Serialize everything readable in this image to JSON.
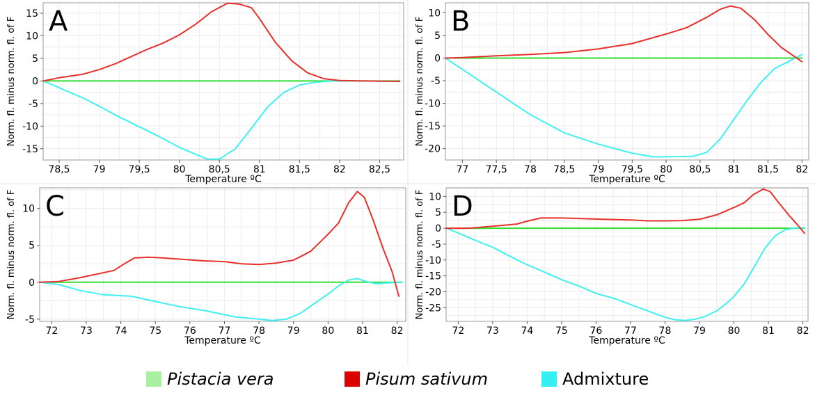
{
  "colors": {
    "pistacia": "#33dd33",
    "pisum": "#e8302a",
    "admixture": "#3ff0f0",
    "grid": "#ececec",
    "frame": "#9a9a9a"
  },
  "legend": [
    {
      "label": "Pistacia vera",
      "swatch": "#a8f0a0",
      "italic": true
    },
    {
      "label": "Pisum sativum",
      "swatch": "#dd0000",
      "italic": true
    },
    {
      "label": "Admixture",
      "swatch": "#33f0f5",
      "italic": false
    }
  ],
  "chart_data": [
    {
      "type": "line",
      "panel_label": "A",
      "xlabel": "Temperature ºC",
      "ylabel": "Norm. fl. minus norm. fl. of F",
      "xlim": [
        78.3,
        82.8
      ],
      "ylim": [
        -17.5,
        17.3
      ],
      "xticks": [
        78.5,
        79,
        79.5,
        80,
        80.5,
        81,
        81.5,
        82,
        82.5
      ],
      "xtick_labels": [
        "78,5",
        "79",
        "79,5",
        "80",
        "80,5",
        "81",
        "81,5",
        "82",
        "82,5"
      ],
      "yticks": [
        -15,
        -10,
        -5,
        0,
        5,
        10,
        15
      ],
      "ytick_labels": [
        "-15",
        "-10",
        "-5",
        "0",
        "5",
        "10",
        "15"
      ],
      "series": [
        {
          "name": "Pistacia vera",
          "x": [
            78.3,
            82.75
          ],
          "y": [
            0,
            0
          ]
        },
        {
          "name": "Pisum sativum",
          "x": [
            78.3,
            78.5,
            78.8,
            79.0,
            79.2,
            79.4,
            79.6,
            79.8,
            80.0,
            80.2,
            80.4,
            80.6,
            80.75,
            80.9,
            81.0,
            81.2,
            81.4,
            81.6,
            81.8,
            82.0,
            82.3,
            82.75
          ],
          "y": [
            0,
            0.7,
            1.5,
            2.5,
            3.8,
            5.4,
            7.0,
            8.4,
            10.2,
            12.5,
            15.3,
            17.2,
            17.0,
            16.2,
            13.8,
            8.5,
            4.5,
            1.8,
            0.5,
            0.1,
            0,
            -0.1
          ]
        },
        {
          "name": "Admixture",
          "x": [
            78.3,
            78.5,
            78.8,
            79.0,
            79.2,
            79.4,
            79.6,
            79.8,
            80.0,
            80.2,
            80.35,
            80.5,
            80.7,
            80.9,
            81.1,
            81.3,
            81.5,
            81.7,
            81.9,
            82.1,
            82.3,
            82.75
          ],
          "y": [
            0,
            -1.5,
            -3.8,
            -5.6,
            -7.5,
            -9.3,
            -11.0,
            -12.8,
            -14.7,
            -16.2,
            -17.3,
            -17.3,
            -15.0,
            -10.5,
            -5.8,
            -2.6,
            -0.9,
            -0.3,
            0,
            0,
            0,
            -0.1
          ]
        }
      ]
    },
    {
      "type": "line",
      "panel_label": "B",
      "xlabel": "Temperature ºC",
      "ylabel": "Norm. fl. minus norm. fl. of F",
      "xlim": [
        76.75,
        82.1
      ],
      "ylim": [
        -22.5,
        12.2
      ],
      "xticks": [
        77,
        77.5,
        78,
        78.5,
        79,
        79.5,
        80,
        80.5,
        81,
        81.5,
        82
      ],
      "xtick_labels": [
        "77",
        "77,5",
        "78",
        "78,5",
        "79",
        "79,5",
        "80",
        "80,5",
        "81",
        "81,5",
        "82"
      ],
      "yticks": [
        -20,
        -15,
        -10,
        -5,
        0,
        5,
        10
      ],
      "ytick_labels": [
        "-20",
        "-15",
        "-10",
        "-5",
        "0",
        "5",
        "10"
      ],
      "series": [
        {
          "name": "Pistacia vera",
          "x": [
            76.75,
            82.0
          ],
          "y": [
            0,
            0
          ]
        },
        {
          "name": "Pisum sativum",
          "x": [
            76.75,
            77.0,
            77.5,
            78.0,
            78.5,
            79.0,
            79.5,
            80.0,
            80.3,
            80.6,
            80.8,
            80.95,
            81.1,
            81.3,
            81.5,
            81.7,
            82.0
          ],
          "y": [
            0,
            0.1,
            0.5,
            0.8,
            1.2,
            2.0,
            3.2,
            5.3,
            6.7,
            9.0,
            10.8,
            11.5,
            11.0,
            8.5,
            5.2,
            2.3,
            -0.8
          ]
        },
        {
          "name": "Admixture",
          "x": [
            76.75,
            77.0,
            77.5,
            78.0,
            78.5,
            79.0,
            79.5,
            79.8,
            80.0,
            80.4,
            80.6,
            80.8,
            81.0,
            81.2,
            81.4,
            81.6,
            81.8,
            82.0
          ],
          "y": [
            0,
            -2.5,
            -7.5,
            -12.5,
            -16.5,
            -19.0,
            -21.0,
            -21.8,
            -21.8,
            -21.7,
            -20.8,
            -17.8,
            -13.5,
            -9.2,
            -5.3,
            -2.3,
            -0.8,
            0.8
          ]
        }
      ]
    },
    {
      "type": "line",
      "panel_label": "C",
      "xlabel": "Temperature ºC",
      "ylabel": "Norm. fl. minus norm. fl. of F",
      "xlim": [
        71.65,
        82.25
      ],
      "ylim": [
        -5.3,
        12.8
      ],
      "xticks": [
        72,
        73,
        74,
        75,
        76,
        77,
        78,
        79,
        80,
        81,
        82
      ],
      "xtick_labels": [
        "72",
        "73",
        "74",
        "75",
        "76",
        "77",
        "78",
        "79",
        "80",
        "81",
        "82"
      ],
      "yticks": [
        -5,
        0,
        5,
        10
      ],
      "ytick_labels": [
        "-5",
        "0",
        "5",
        "10"
      ],
      "series": [
        {
          "name": "Pistacia vera",
          "x": [
            71.65,
            82.15
          ],
          "y": [
            0,
            0
          ]
        },
        {
          "name": "Pisum sativum",
          "x": [
            71.65,
            72.2,
            72.8,
            73.3,
            73.8,
            74.1,
            74.4,
            74.8,
            75.2,
            75.8,
            76.4,
            77.0,
            77.5,
            78.0,
            78.5,
            79.0,
            79.5,
            80.0,
            80.3,
            80.6,
            80.85,
            81.05,
            81.3,
            81.6,
            81.85,
            82.05
          ],
          "y": [
            0,
            0.1,
            0.6,
            1.1,
            1.6,
            2.5,
            3.3,
            3.4,
            3.3,
            3.1,
            2.9,
            2.8,
            2.5,
            2.4,
            2.6,
            3.0,
            4.2,
            6.5,
            8.0,
            10.8,
            12.3,
            11.5,
            8.5,
            4.5,
            1.5,
            -1.9
          ]
        },
        {
          "name": "Admixture",
          "x": [
            71.65,
            72.2,
            72.8,
            73.5,
            74.3,
            75.0,
            75.7,
            76.5,
            77.3,
            78.0,
            78.4,
            78.8,
            79.2,
            79.6,
            80.0,
            80.3,
            80.6,
            80.85,
            81.1,
            81.4,
            81.7,
            82.15
          ],
          "y": [
            0,
            -0.3,
            -1.1,
            -1.7,
            -1.9,
            -2.6,
            -3.3,
            -3.9,
            -4.7,
            -5.0,
            -5.2,
            -5.0,
            -4.2,
            -2.9,
            -1.6,
            -0.5,
            0.3,
            0.5,
            0.1,
            -0.2,
            -0.1,
            0
          ]
        }
      ]
    },
    {
      "type": "line",
      "panel_label": "D",
      "xlabel": "Temperature ºC",
      "ylabel": "Norm. fl. minus norm. fl. of F",
      "xlim": [
        71.65,
        82.15
      ],
      "ylim": [
        -29.3,
        12.7
      ],
      "xticks": [
        72,
        73,
        74,
        75,
        76,
        77,
        78,
        79,
        80,
        81,
        82
      ],
      "xtick_labels": [
        "72",
        "73",
        "74",
        "75",
        "76",
        "77",
        "78",
        "79",
        "80",
        "81",
        "82"
      ],
      "yticks": [
        -25,
        -20,
        -15,
        -10,
        -5,
        0,
        5,
        10
      ],
      "ytick_labels": [
        "-25",
        "-20",
        "-15",
        "-10",
        "-5",
        "0",
        "5",
        "10"
      ],
      "series": [
        {
          "name": "Pistacia vera",
          "x": [
            71.65,
            82.05
          ],
          "y": [
            0,
            0
          ]
        },
        {
          "name": "Pisum sativum",
          "x": [
            71.65,
            72.3,
            73.0,
            73.7,
            74.0,
            74.4,
            75.0,
            75.6,
            76.2,
            77.0,
            77.5,
            78.0,
            78.5,
            79.0,
            79.5,
            80.0,
            80.3,
            80.55,
            80.85,
            81.05,
            81.3,
            81.6,
            81.85,
            82.05
          ],
          "y": [
            0,
            0,
            0.6,
            1.3,
            2.2,
            3.2,
            3.2,
            3.0,
            2.8,
            2.6,
            2.3,
            2.3,
            2.4,
            2.8,
            4.2,
            6.5,
            8.0,
            10.5,
            12.3,
            11.5,
            8.0,
            4.0,
            1.0,
            -1.6
          ]
        },
        {
          "name": "Admixture",
          "x": [
            71.65,
            72.0,
            72.5,
            73.0,
            73.5,
            74.0,
            74.5,
            75.0,
            75.5,
            76.0,
            76.5,
            77.0,
            77.5,
            78.0,
            78.3,
            78.6,
            78.9,
            79.2,
            79.5,
            79.8,
            80.0,
            80.3,
            80.6,
            80.9,
            81.2,
            81.5,
            81.8,
            82.05
          ],
          "y": [
            0,
            -1.5,
            -3.8,
            -6.0,
            -8.8,
            -11.5,
            -13.8,
            -16.2,
            -18.2,
            -20.5,
            -22.0,
            -24.0,
            -26.0,
            -28.0,
            -28.8,
            -29.0,
            -28.6,
            -27.6,
            -26.0,
            -23.5,
            -21.5,
            -17.5,
            -12.0,
            -6.3,
            -2.3,
            -0.5,
            0.1,
            0.1
          ]
        }
      ]
    }
  ]
}
